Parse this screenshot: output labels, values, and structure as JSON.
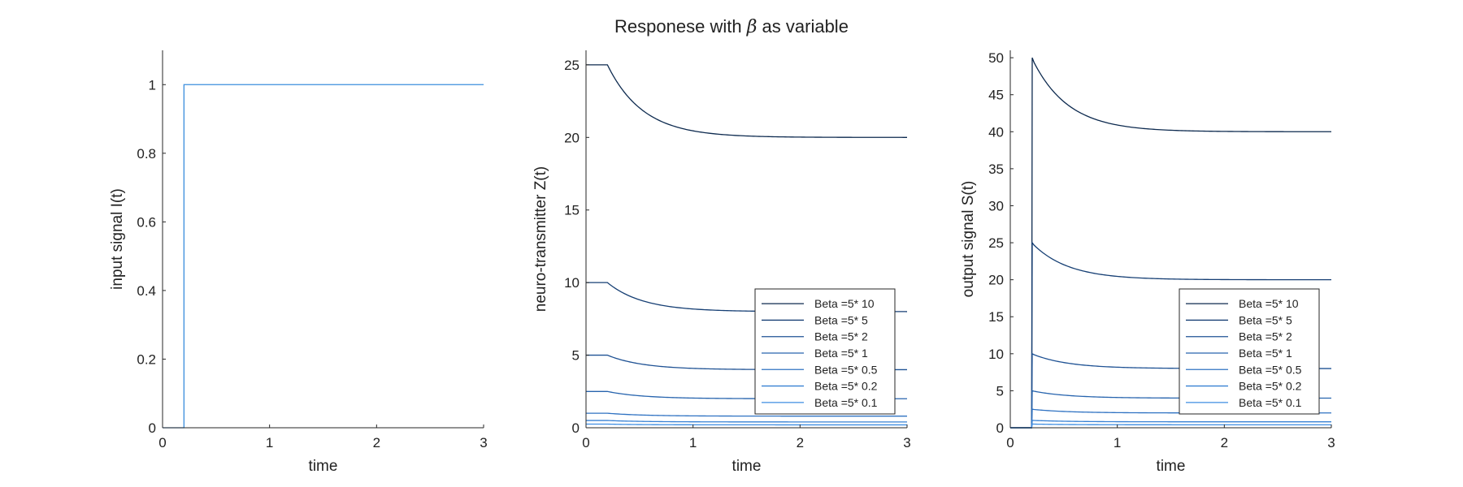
{
  "figure": {
    "title_prefix": "Responese with ",
    "title_symbol": "β",
    "title_suffix": " as variable"
  },
  "chart_data": [
    {
      "type": "line",
      "title": "",
      "xlabel": "time",
      "ylabel": "input signal I(t)",
      "xlim": [
        0,
        3
      ],
      "ylim": [
        0,
        1.1
      ],
      "xticks": [
        0,
        1,
        2,
        3
      ],
      "yticks": [
        0,
        0.2,
        0.4,
        0.6,
        0.8,
        1
      ],
      "grid": false,
      "legend": null,
      "series": [
        {
          "color": "#3b8ede",
          "points": [
            [
              0,
              0
            ],
            [
              0.2,
              0
            ],
            [
              0.2,
              1
            ],
            [
              3,
              1
            ]
          ]
        }
      ]
    },
    {
      "type": "line",
      "title": "",
      "xlabel": "time",
      "ylabel": "neuro-transmitter Z(t)",
      "xlim": [
        0,
        3
      ],
      "ylim": [
        0,
        26
      ],
      "xticks": [
        0,
        1,
        2,
        3
      ],
      "yticks": [
        0,
        5,
        10,
        15,
        20,
        25
      ],
      "grid": false,
      "legend": "bottom-right",
      "step_time": 0.2,
      "decay_rate": 3,
      "series": [
        {
          "name": "Beta =5* 10",
          "color": "#0d2a4f",
          "start": 25,
          "end": 20
        },
        {
          "name": "Beta =5* 5",
          "color": "#163f74",
          "start": 10,
          "end": 8
        },
        {
          "name": "Beta =5* 2",
          "color": "#1f5294",
          "start": 5,
          "end": 4
        },
        {
          "name": "Beta =5* 1",
          "color": "#2764ae",
          "start": 2.5,
          "end": 2
        },
        {
          "name": "Beta =5* 0.5",
          "color": "#2f72c2",
          "start": 1,
          "end": 0.8
        },
        {
          "name": "Beta =5* 0.2",
          "color": "#3680d3",
          "start": 0.5,
          "end": 0.4
        },
        {
          "name": "Beta =5* 0.1",
          "color": "#3d8de2",
          "start": 0.25,
          "end": 0.2
        }
      ]
    },
    {
      "type": "line",
      "title": "",
      "xlabel": "time",
      "ylabel": "output signal S(t)",
      "xlim": [
        0,
        3
      ],
      "ylim": [
        0,
        51
      ],
      "xticks": [
        0,
        1,
        2,
        3
      ],
      "yticks": [
        0,
        5,
        10,
        15,
        20,
        25,
        30,
        35,
        40,
        45,
        50
      ],
      "grid": false,
      "legend": "bottom-right",
      "step_time": 0.2,
      "decay_rate": 3,
      "series": [
        {
          "name": "Beta =5* 10",
          "color": "#0d2a4f",
          "start": 50,
          "end": 40
        },
        {
          "name": "Beta =5* 5",
          "color": "#163f74",
          "start": 25,
          "end": 20
        },
        {
          "name": "Beta =5* 2",
          "color": "#1f5294",
          "start": 10,
          "end": 8
        },
        {
          "name": "Beta =5* 1",
          "color": "#2764ae",
          "start": 5,
          "end": 4
        },
        {
          "name": "Beta =5* 0.5",
          "color": "#2f72c2",
          "start": 2.5,
          "end": 2
        },
        {
          "name": "Beta =5* 0.2",
          "color": "#3680d3",
          "start": 1,
          "end": 0.8
        },
        {
          "name": "Beta =5* 0.1",
          "color": "#3d8de2",
          "start": 0.5,
          "end": 0.4
        }
      ]
    }
  ]
}
